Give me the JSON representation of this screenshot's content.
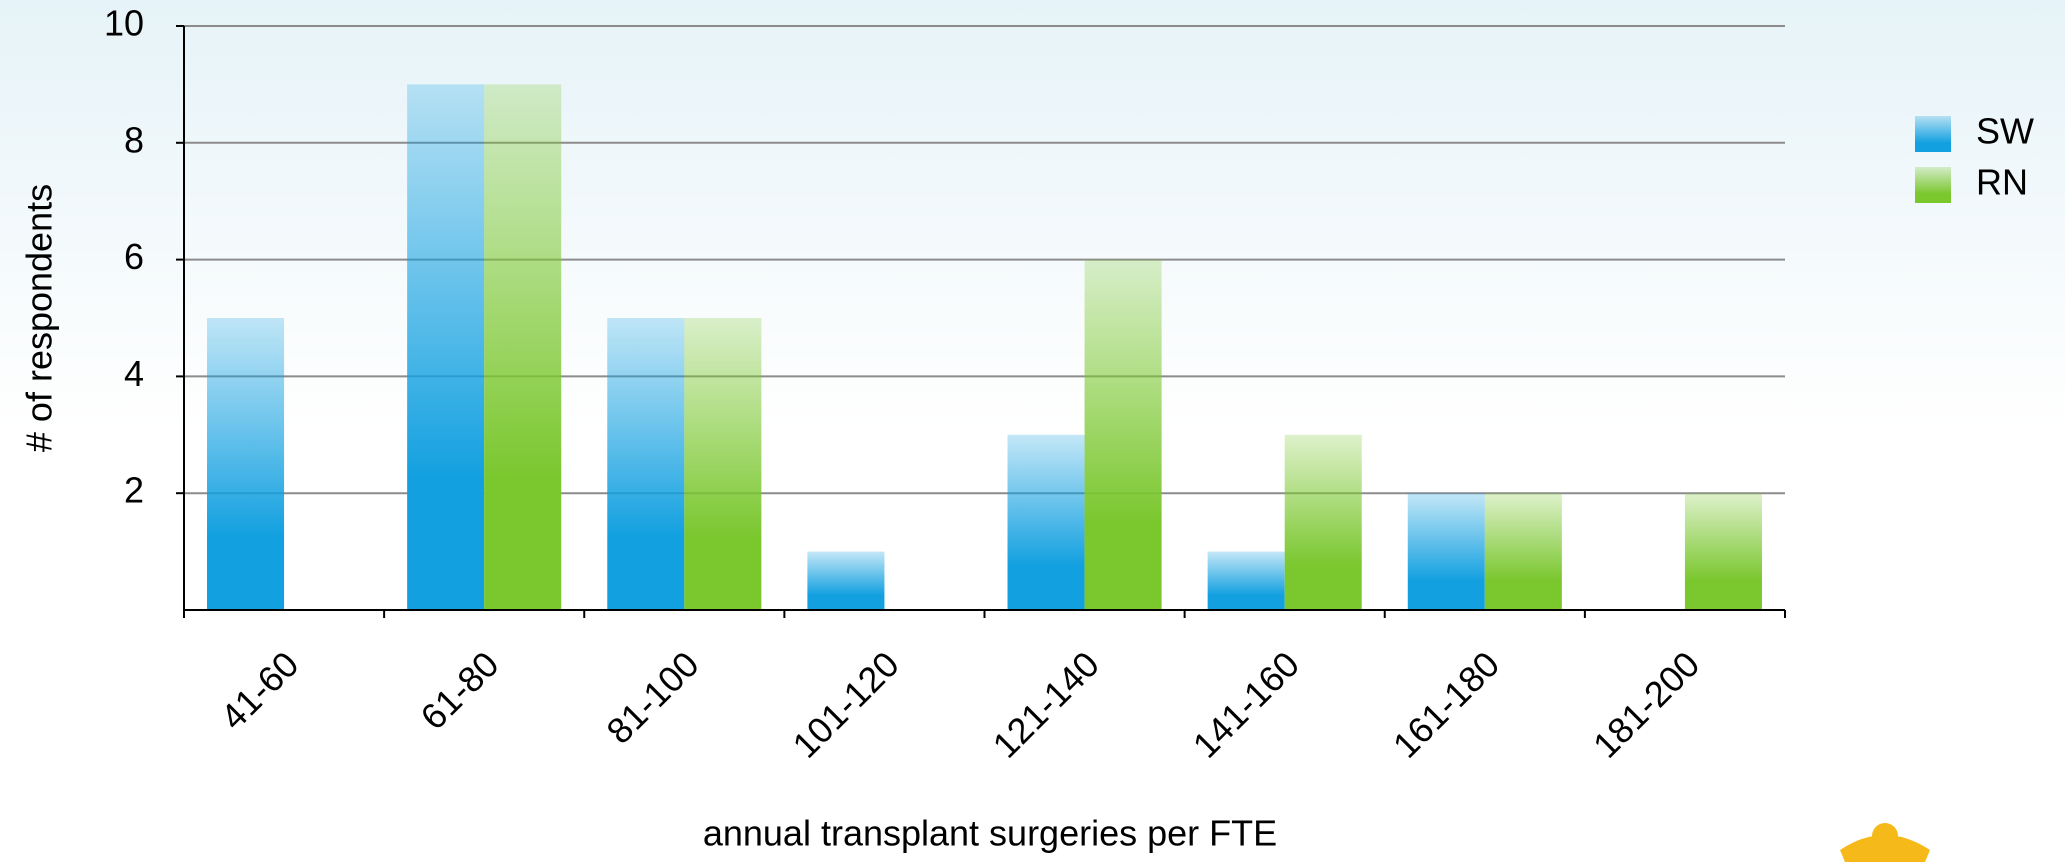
{
  "chart_data": {
    "type": "bar",
    "x_label": "annual transplant surgeries per FTE",
    "y_label": "# of respondents",
    "categories": [
      "41-60",
      "61-80",
      "81-100",
      "101-120",
      "121-140",
      "141-160",
      "161-180",
      "181-200"
    ],
    "series": [
      {
        "name": "SW",
        "color": "#12a0e0",
        "values": [
          5,
          9,
          5,
          1,
          3,
          1,
          2,
          0
        ]
      },
      {
        "name": "RN",
        "color": "#7ac72e",
        "values": [
          0,
          9,
          5,
          0,
          6,
          3,
          2,
          2
        ]
      }
    ],
    "ylim": [
      0,
      10
    ],
    "yticks": [
      2,
      4,
      6,
      8,
      10
    ],
    "grid": true,
    "legend": "right"
  }
}
